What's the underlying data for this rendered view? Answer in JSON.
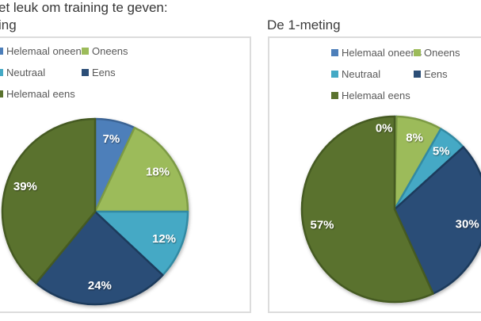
{
  "page": {
    "title": "et leuk om training te geven:"
  },
  "charts": [
    {
      "title": "ing"
    },
    {
      "title": "De 1-meting"
    }
  ],
  "chart_data": [
    {
      "type": "pie",
      "title": "ing",
      "categories": [
        "Helemaal oneens",
        "Oneens",
        "Neutraal",
        "Eens",
        "Helemaal eens"
      ],
      "values": [
        7,
        18,
        12,
        24,
        39
      ],
      "labels": [
        "7%",
        "18%",
        "12%",
        "24%",
        "39%"
      ],
      "unit": "percent",
      "start_angle_deg": 0,
      "direction": "clockwise",
      "legend_position": "top-left",
      "legend_columns": 2
    },
    {
      "type": "pie",
      "title": "De 1-meting",
      "categories": [
        "Helemaal oneens",
        "Oneens",
        "Neutraal",
        "Eens",
        "Helemaal eens"
      ],
      "values": [
        0,
        8,
        5,
        30,
        57
      ],
      "labels": [
        "0%",
        "8%",
        "5%",
        "30%",
        "57%"
      ],
      "unit": "percent",
      "start_angle_deg": 0,
      "direction": "clockwise",
      "legend_position": "top-left",
      "legend_columns": 2
    }
  ],
  "style": {
    "series_colors": [
      {
        "name": "Helemaal oneens",
        "fill": "#4d7fba",
        "edge": "#3a6494"
      },
      {
        "name": "Oneens",
        "fill": "#9cbb5a",
        "edge": "#7c9a44"
      },
      {
        "name": "Neutraal",
        "fill": "#44a9c5",
        "edge": "#338aa3"
      },
      {
        "name": "Eens",
        "fill": "#2c4e77",
        "edge": "#1e3a5c"
      },
      {
        "name": "Helemaal eens",
        "fill": "#5a722e",
        "edge": "#455a20"
      }
    ],
    "data_label_color": "#ffffff",
    "legend_text_color": "#595959",
    "title_color": "#3c3c3c",
    "panel_border_color": "#dcdcdc",
    "background": "#ffffff"
  }
}
